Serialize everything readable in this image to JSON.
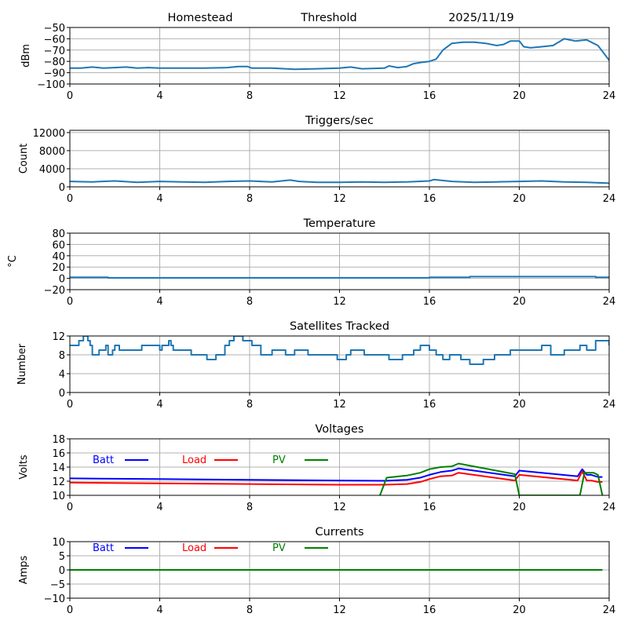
{
  "figure": {
    "header": [
      "Homestead",
      "Threshold",
      "2025/11/19"
    ]
  },
  "chart_data": [
    {
      "type": "line",
      "id": "signal",
      "title": "",
      "xlabel": "",
      "ylabel": "dBm",
      "xlim": [
        0,
        24
      ],
      "ylim": [
        -100,
        -50
      ],
      "xticks": [
        0,
        4,
        8,
        12,
        16,
        20,
        24
      ],
      "yticks": [
        -100,
        -90,
        -80,
        -70,
        -60,
        -50
      ],
      "ytick_labels": [
        "−100",
        "−90",
        "−80",
        "−70",
        "−60",
        "−50"
      ],
      "grid": true,
      "series": [
        {
          "name": "signal",
          "color": "#1f77b4",
          "x": [
            0,
            0.5,
            1,
            1.5,
            2,
            2.5,
            3,
            3.5,
            4,
            5,
            6,
            7,
            7.5,
            7.9,
            8.1,
            9,
            10,
            11,
            12,
            12.5,
            13,
            14,
            14.2,
            14.6,
            15,
            15.3,
            15.6,
            16,
            16.3,
            16.6,
            17,
            17.5,
            18,
            18.5,
            19,
            19.3,
            19.6,
            20,
            20.2,
            20.5,
            21,
            21.5,
            22,
            22.5,
            23,
            23.5,
            24
          ],
          "y": [
            -86,
            -86,
            -85,
            -86,
            -85.5,
            -85,
            -86,
            -85.5,
            -86,
            -86,
            -86,
            -85.5,
            -84.5,
            -84.5,
            -86,
            -86,
            -87,
            -86.5,
            -86,
            -85,
            -86.5,
            -86,
            -84,
            -85.5,
            -84.5,
            -82,
            -81,
            -80,
            -78,
            -70,
            -64,
            -63,
            -63,
            -64,
            -66,
            -65,
            -62,
            -62,
            -67,
            -68,
            -67,
            -66,
            -60,
            -62,
            -61,
            -66,
            -79
          ]
        }
      ]
    },
    {
      "type": "line",
      "id": "triggers",
      "title": "Triggers/sec",
      "xlabel": "",
      "ylabel": "Count",
      "xlim": [
        0,
        24
      ],
      "ylim": [
        0,
        12500
      ],
      "xticks": [
        0,
        4,
        8,
        12,
        16,
        20,
        24
      ],
      "yticks": [
        0,
        4000,
        8000,
        12000
      ],
      "ytick_labels": [
        "0",
        "4000",
        "8000",
        "12000"
      ],
      "grid": true,
      "series": [
        {
          "name": "triggers",
          "color": "#1f77b4",
          "x": [
            0,
            1,
            2,
            3,
            4,
            5,
            6,
            7,
            8,
            9,
            9.8,
            10.2,
            11,
            12,
            13,
            14,
            15,
            16,
            16.2,
            17,
            18,
            19,
            20,
            21,
            22,
            23,
            24
          ],
          "y": [
            1200,
            1100,
            1300,
            1000,
            1200,
            1100,
            1000,
            1200,
            1300,
            1100,
            1500,
            1200,
            1000,
            1000,
            1100,
            1000,
            1100,
            1300,
            1600,
            1200,
            1000,
            1100,
            1200,
            1300,
            1100,
            1000,
            800
          ]
        }
      ]
    },
    {
      "type": "line",
      "id": "temperature",
      "title": "Temperature",
      "xlabel": "",
      "ylabel": "°C",
      "xlim": [
        0,
        24
      ],
      "ylim": [
        -20,
        80
      ],
      "xticks": [
        0,
        4,
        8,
        12,
        16,
        20,
        24
      ],
      "yticks": [
        -20,
        0,
        20,
        40,
        60,
        80
      ],
      "ytick_labels": [
        "−20",
        "0",
        "20",
        "40",
        "60",
        "80"
      ],
      "grid": true,
      "series": [
        {
          "name": "temperature",
          "color": "#1f77b4",
          "x": [
            0,
            1.7,
            1.7,
            16,
            16,
            17.8,
            17.8,
            23.4,
            23.4,
            24
          ],
          "y": [
            2,
            2,
            1,
            1,
            2,
            2,
            3,
            3,
            2,
            2
          ],
          "step": true
        }
      ]
    },
    {
      "type": "line",
      "id": "satellites",
      "title": "Satellites Tracked",
      "xlabel": "",
      "ylabel": "Number",
      "xlim": [
        0,
        24
      ],
      "ylim": [
        0,
        12
      ],
      "xticks": [
        0,
        4,
        8,
        12,
        16,
        20,
        24
      ],
      "yticks": [
        0,
        4,
        8,
        12
      ],
      "ytick_labels": [
        "0",
        "4",
        "8",
        "12"
      ],
      "grid": true,
      "series": [
        {
          "name": "satellites",
          "color": "#1f77b4",
          "step": true,
          "x": [
            0,
            0.4,
            0.6,
            0.8,
            0.9,
            1.0,
            1.3,
            1.5,
            1.6,
            1.7,
            1.9,
            2.0,
            2.2,
            3.0,
            3.2,
            3.5,
            4.0,
            4.1,
            4.4,
            4.5,
            4.6,
            5.4,
            6.1,
            6.5,
            6.9,
            7.1,
            7.3,
            7.7,
            8.1,
            8.5,
            9.0,
            9.6,
            10.0,
            10.6,
            11.0,
            11.2,
            11.9,
            12.3,
            12.5,
            13.1,
            13.5,
            14.2,
            14.8,
            15.3,
            15.6,
            16.0,
            16.3,
            16.6,
            16.9,
            17.4,
            17.8,
            18.4,
            18.9,
            19.6,
            20.0,
            21.0,
            21.4,
            22.0,
            22.4,
            22.7,
            23.0,
            23.4,
            24
          ],
          "y": [
            10,
            11,
            12,
            11,
            10,
            8,
            9,
            9,
            10,
            8,
            9,
            10,
            9,
            9,
            10,
            10,
            9,
            10,
            11,
            10,
            9,
            8,
            7,
            8,
            10,
            11,
            12,
            11,
            10,
            8,
            9,
            8,
            9,
            8,
            8,
            8,
            7,
            8,
            9,
            8,
            8,
            7,
            8,
            9,
            10,
            9,
            8,
            7,
            8,
            7,
            6,
            7,
            8,
            9,
            9,
            10,
            8,
            9,
            9,
            10,
            9,
            11,
            10
          ]
        }
      ]
    },
    {
      "type": "line",
      "id": "voltages",
      "title": "Voltages",
      "xlabel": "",
      "ylabel": "Volts",
      "xlim": [
        0,
        24
      ],
      "ylim": [
        10,
        18
      ],
      "xticks": [
        0,
        4,
        8,
        12,
        16,
        20,
        24
      ],
      "yticks": [
        10,
        12,
        14,
        16,
        18
      ],
      "ytick_labels": [
        "10",
        "12",
        "14",
        "16",
        "18"
      ],
      "grid": true,
      "legend": "inside-top-left-row",
      "series": [
        {
          "name": "Batt",
          "color": "#0000ff",
          "x": [
            0,
            4,
            8,
            12,
            14,
            15,
            15.6,
            16,
            16.5,
            17,
            17.3,
            19.8,
            20,
            22.6,
            22.8,
            23.0,
            23.2,
            23.5,
            23.7
          ],
          "y": [
            12.4,
            12.3,
            12.2,
            12.1,
            12.05,
            12.2,
            12.5,
            12.9,
            13.3,
            13.5,
            13.8,
            12.7,
            13.5,
            12.7,
            13.7,
            12.9,
            12.9,
            12.6,
            12.6
          ]
        },
        {
          "name": "Load",
          "color": "#ff0000",
          "x": [
            0,
            4,
            8,
            12,
            14,
            15,
            15.6,
            16,
            16.5,
            17,
            17.3,
            19.8,
            20,
            22.6,
            22.8,
            23.0,
            23.2,
            23.5,
            23.7
          ],
          "y": [
            11.8,
            11.7,
            11.6,
            11.5,
            11.5,
            11.6,
            11.9,
            12.3,
            12.7,
            12.8,
            13.2,
            12.1,
            12.9,
            12.1,
            13.4,
            12.1,
            12.1,
            11.9,
            11.9
          ]
        },
        {
          "name": "PV",
          "color": "#008000",
          "x": [
            13.8,
            14.1,
            15.0,
            15.6,
            16.0,
            16.5,
            17.0,
            17.3,
            19.8,
            20.0,
            22.7,
            22.9,
            23.3,
            23.5,
            23.7
          ],
          "y": [
            10.0,
            12.5,
            12.8,
            13.2,
            13.7,
            14.0,
            14.1,
            14.5,
            13.0,
            10.0,
            10.0,
            13.2,
            13.2,
            12.9,
            10.0
          ]
        }
      ]
    },
    {
      "type": "line",
      "id": "currents",
      "title": "Currents",
      "xlabel": "",
      "ylabel": "Amps",
      "xlim": [
        0,
        24
      ],
      "ylim": [
        -10,
        10
      ],
      "xticks": [
        0,
        4,
        8,
        12,
        16,
        20,
        24
      ],
      "yticks": [
        -10,
        -5,
        0,
        5,
        10
      ],
      "ytick_labels": [
        "−10",
        "−5",
        "0",
        "5",
        "10"
      ],
      "grid": true,
      "legend": "inside-top-left-row",
      "series": [
        {
          "name": "Batt",
          "color": "#0000ff",
          "x": [
            0,
            23.7
          ],
          "y": [
            0,
            0
          ]
        },
        {
          "name": "Load",
          "color": "#ff0000",
          "x": [
            0,
            23.7
          ],
          "y": [
            0,
            0
          ]
        },
        {
          "name": "PV",
          "color": "#008000",
          "x": [
            0,
            23.7
          ],
          "y": [
            0,
            0
          ]
        }
      ]
    }
  ]
}
